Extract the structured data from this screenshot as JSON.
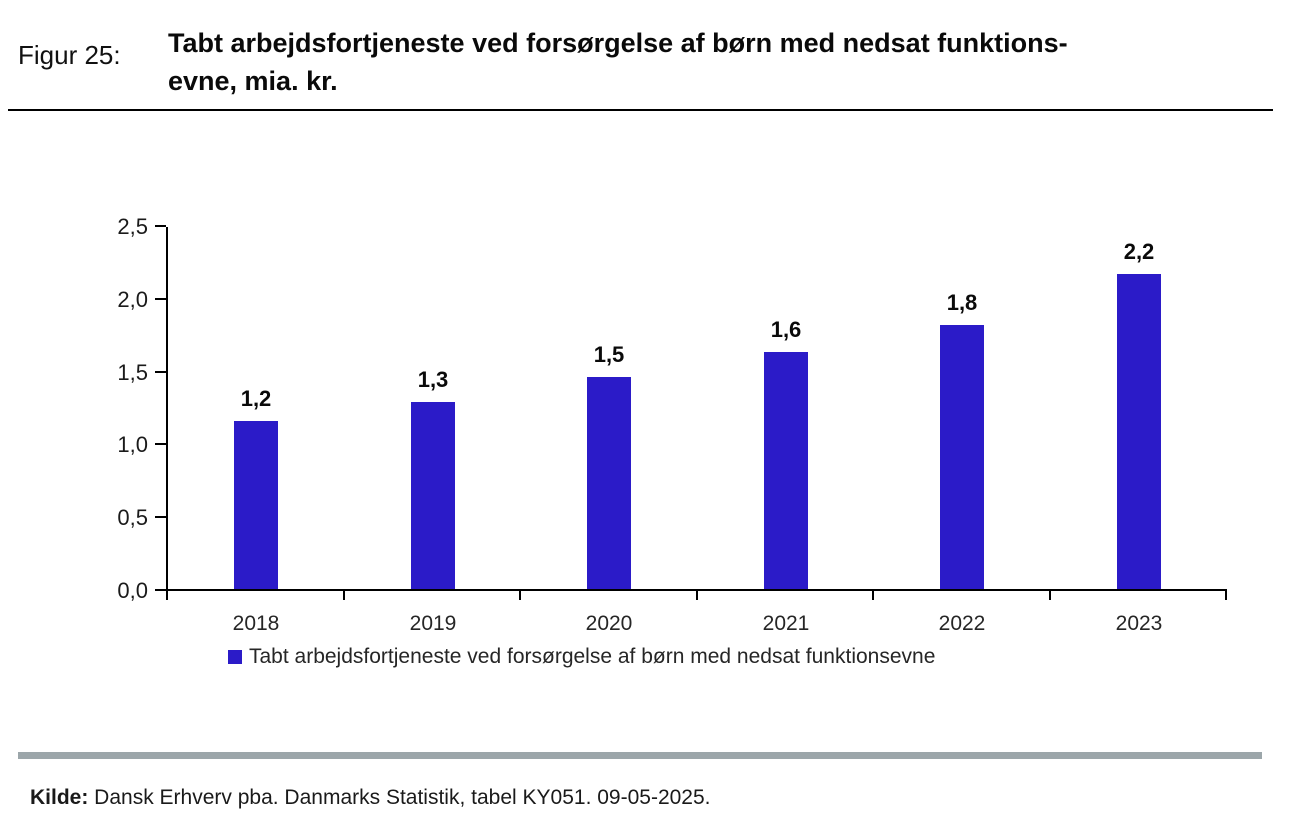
{
  "header": {
    "figure_label": "Figur 25:",
    "title_line1": "Tabt arbejdsfortjeneste ved forsørgelse af børn med nedsat funktions-",
    "title_line2": "evne, mia. kr."
  },
  "chart_data": {
    "type": "bar",
    "title": "Tabt arbejdsfortjeneste ved forsørgelse af børn med nedsat funktionsevne, mia. kr.",
    "unit": "mia. kr.",
    "categories": [
      "2018",
      "2019",
      "2020",
      "2021",
      "2022",
      "2023"
    ],
    "values": [
      1.2,
      1.3,
      1.5,
      1.6,
      1.8,
      2.2
    ],
    "bar_labels": [
      "1,2",
      "1,3",
      "1,5",
      "1,6",
      "1,8",
      "2,2"
    ],
    "values_drawn": [
      1.17,
      1.3,
      1.47,
      1.64,
      1.83,
      2.18
    ],
    "ylim": [
      0.0,
      2.5
    ],
    "yticks": [
      "0,0",
      "0,5",
      "1,0",
      "1,5",
      "2,0",
      "2,5"
    ],
    "grid": false,
    "legend_label": "Tabt arbejdsfortjeneste ved forsørgelse af børn med nedsat funktionsevne",
    "legend_position": "bottom",
    "bar_color": "#2B1BC8"
  },
  "footer": {
    "source_label": "Kilde:",
    "source_text": " Dansk Erhverv pba. Danmarks Statistik, tabel KY051. 09-05-2025."
  },
  "colors": {
    "bar": "#2B1BC8",
    "divider_gray": "#9CA6AA",
    "axis": "#000000"
  }
}
